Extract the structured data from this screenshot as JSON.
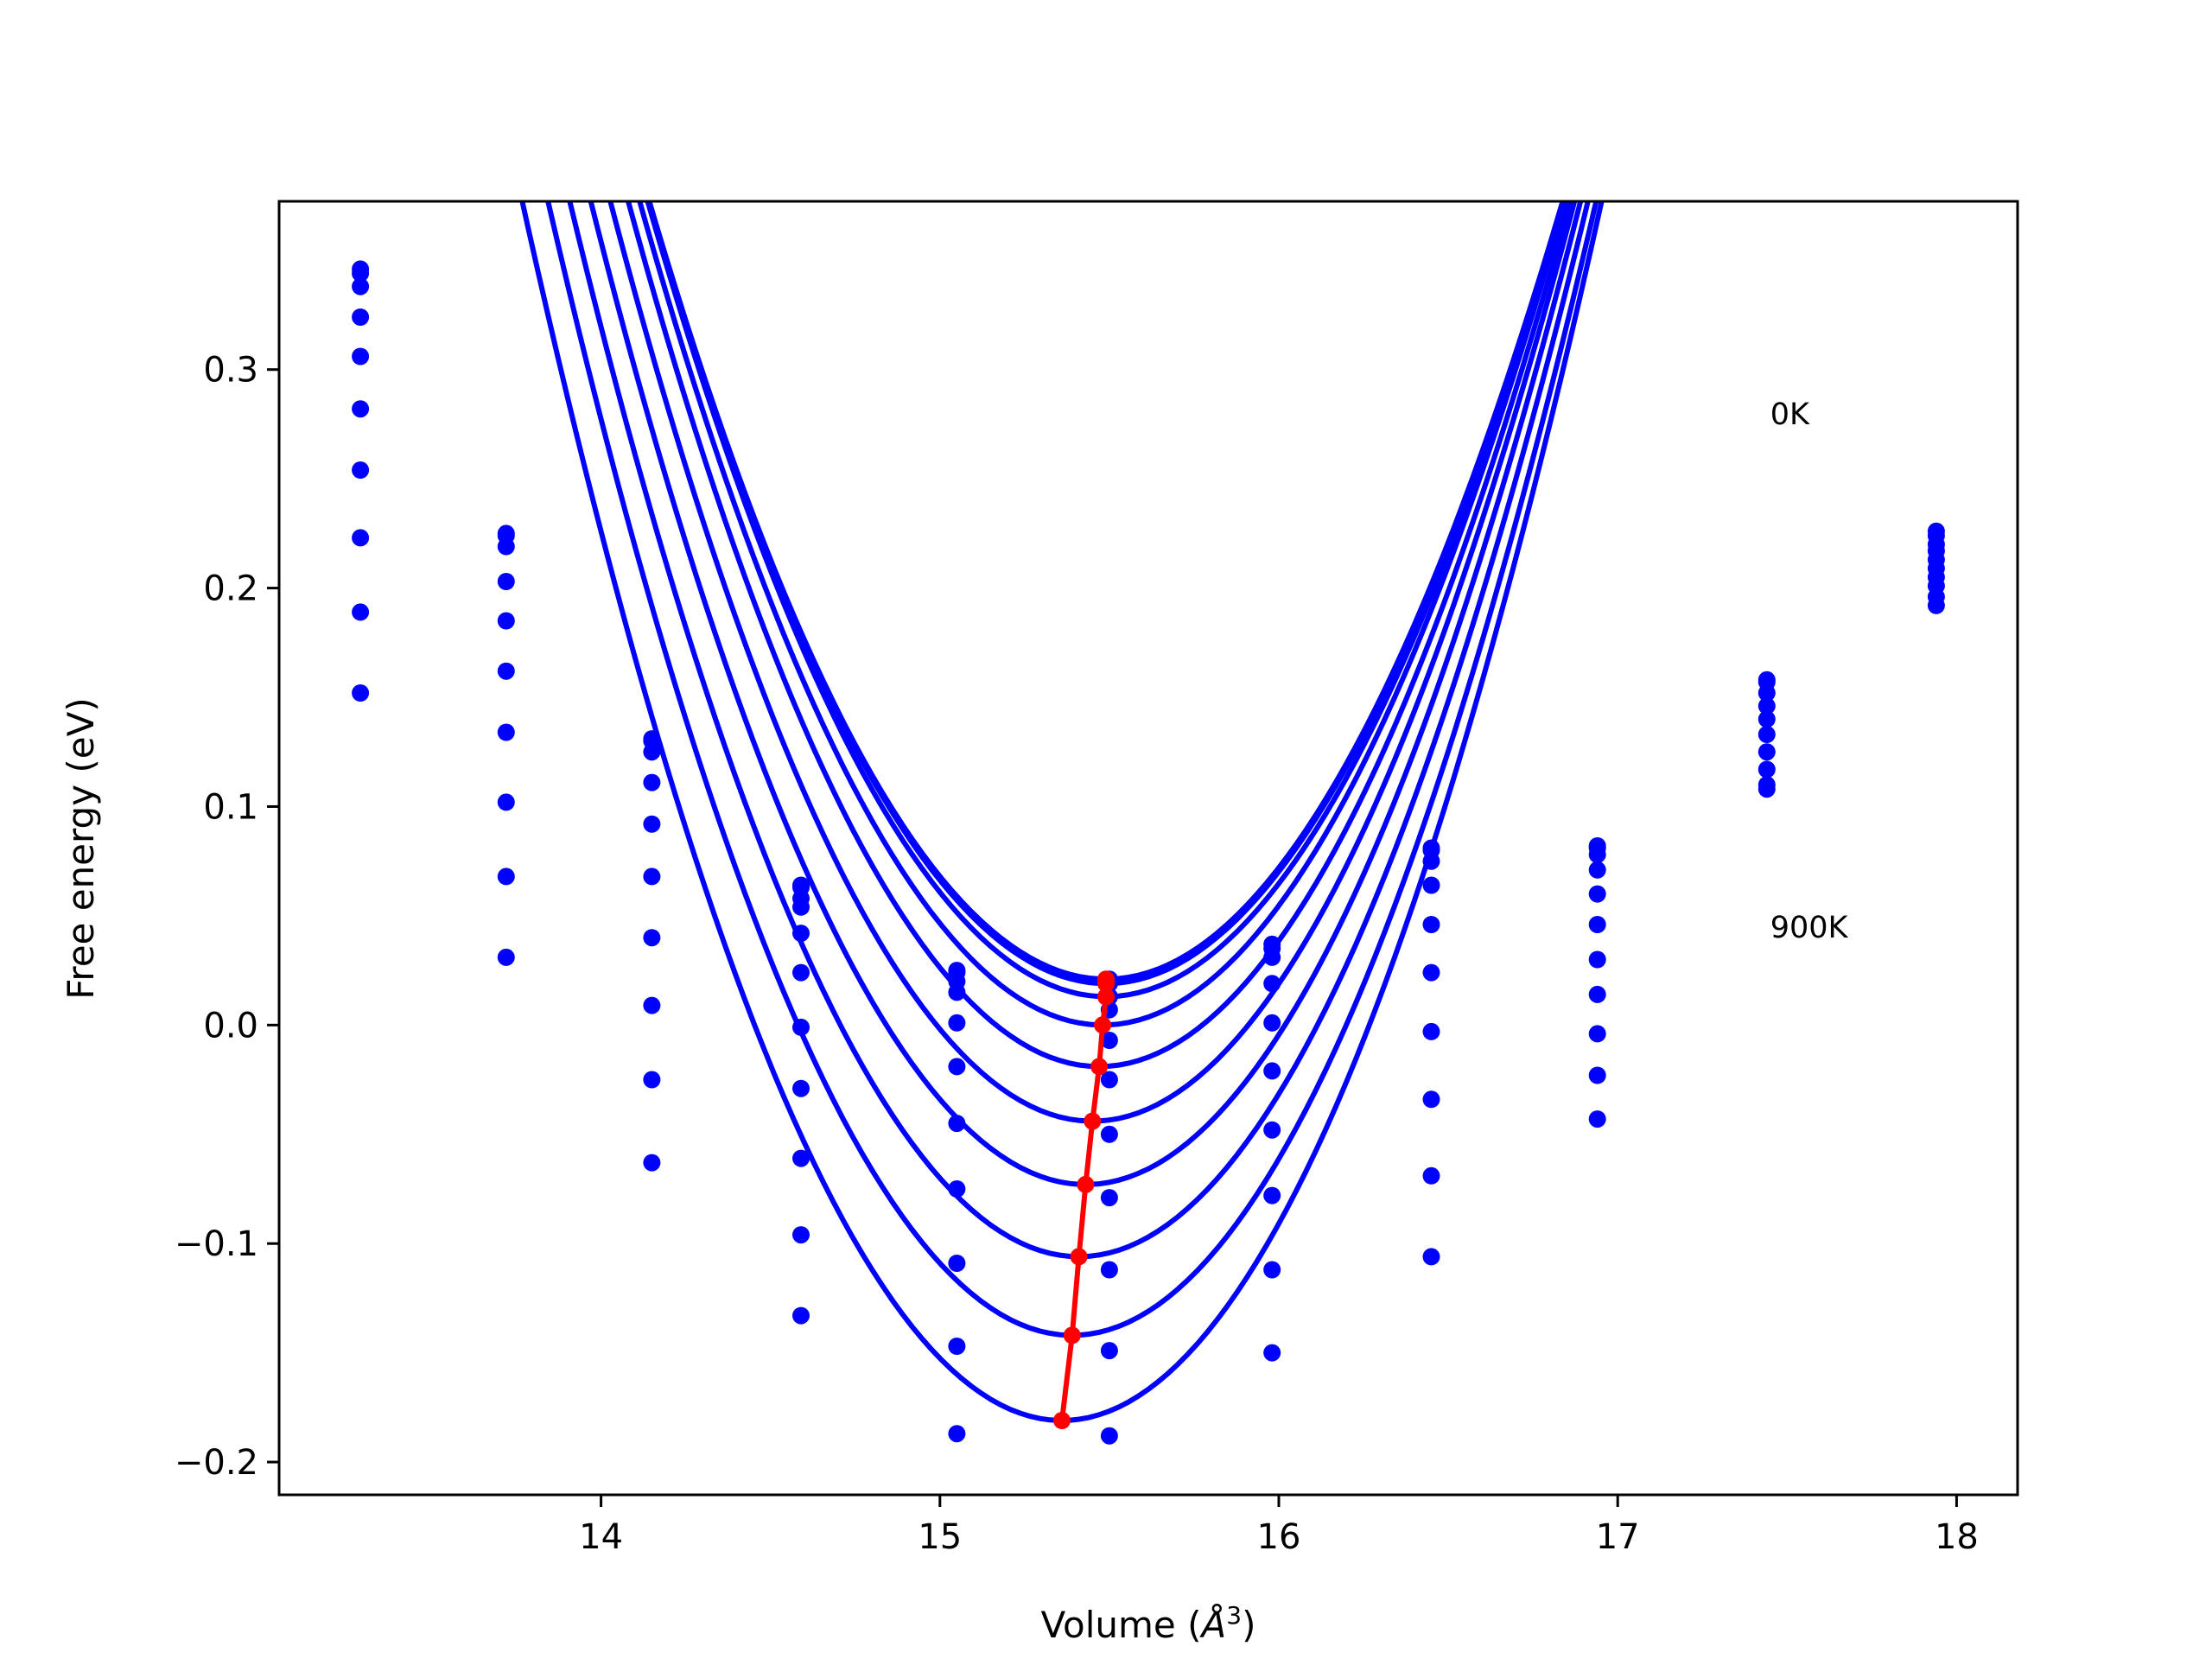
{
  "chart_data": {
    "type": "line",
    "title": "",
    "xlabel": "Volume (Å3)",
    "xlabel_parts": {
      "pre": "Volume (",
      "symbol": "Å",
      "sup": "3",
      "post": ")"
    },
    "ylabel": "Free energy (eV)",
    "xlim": [
      13.05,
      18.18
    ],
    "ylim": [
      -0.215,
      0.377
    ],
    "x_ticks": [
      14,
      15,
      16,
      17,
      18
    ],
    "x_tick_labels": [
      "14",
      "15",
      "16",
      "17",
      "18"
    ],
    "y_ticks": [
      -0.2,
      -0.1,
      0.0,
      0.1,
      0.2,
      0.3
    ],
    "y_tick_labels": [
      "−0.2",
      "−0.1",
      "0.0",
      "0.1",
      "0.2",
      "0.3"
    ],
    "grid": false,
    "legend": "none",
    "annotations": [
      {
        "text": "0K",
        "x": 17.45,
        "y": 0.275
      },
      {
        "text": "900K",
        "x": 17.45,
        "y": 0.04
      }
    ],
    "curve_color": "#0000ff",
    "minimum_color": "#ff0000",
    "volumes": [
      13.29,
      13.72,
      14.15,
      14.59,
      15.05,
      15.5,
      15.98,
      16.45,
      16.94,
      17.44,
      17.94
    ],
    "series": [
      {
        "values": [
          0.346,
          0.225,
          0.131,
          0.064,
          0.025,
          0.021,
          0.037,
          0.081,
          0.082,
          0.158,
          0.226
        ]
      },
      {
        "values": [
          0.344,
          0.224,
          0.13,
          0.063,
          0.024,
          0.019,
          0.035,
          0.08,
          0.081,
          0.157,
          0.224
        ]
      },
      {
        "values": [
          0.338,
          0.219,
          0.125,
          0.058,
          0.02,
          0.013,
          0.031,
          0.075,
          0.078,
          0.152,
          0.22
        ]
      },
      {
        "values": [
          0.324,
          0.203,
          0.111,
          0.054,
          0.015,
          0.007,
          0.019,
          0.064,
          0.071,
          0.146,
          0.217
        ]
      },
      {
        "values": [
          0.306,
          0.185,
          0.092,
          0.042,
          0.001,
          -0.007,
          0.001,
          0.046,
          0.06,
          0.14,
          0.213
        ]
      },
      {
        "values": [
          0.282,
          0.162,
          0.068,
          0.024,
          -0.019,
          -0.025,
          -0.021,
          0.024,
          0.046,
          0.133,
          0.209
        ]
      },
      {
        "values": [
          0.254,
          0.134,
          0.04,
          -0.001,
          -0.045,
          -0.05,
          -0.048,
          -0.003,
          0.03,
          0.125,
          0.205
        ]
      },
      {
        "values": [
          0.223,
          0.102,
          0.009,
          -0.029,
          -0.075,
          -0.079,
          -0.078,
          -0.034,
          0.014,
          0.117,
          0.201
        ]
      },
      {
        "values": [
          0.189,
          0.068,
          -0.025,
          -0.061,
          -0.109,
          -0.112,
          -0.112,
          -0.069,
          -0.004,
          0.11,
          0.196
        ]
      },
      {
        "values": [
          0.152,
          0.031,
          -0.063,
          -0.096,
          -0.147,
          -0.149,
          -0.15,
          -0.106,
          -0.023,
          0.108,
          0.192
        ]
      },
      {
        "values": [
          null,
          null,
          null,
          -0.133,
          -0.187,
          -0.188,
          null,
          null,
          -0.043,
          null,
          null
        ]
      }
    ],
    "fitted_curves": [
      {
        "a": 0.196,
        "v0": 15.49,
        "e0": 0.021
      },
      {
        "a": 0.197,
        "v0": 15.49,
        "e0": 0.019
      },
      {
        "a": 0.199,
        "v0": 15.49,
        "e0": 0.013
      },
      {
        "a": 0.202,
        "v0": 15.48,
        "e0": 0.0
      },
      {
        "a": 0.205,
        "v0": 15.47,
        "e0": -0.019
      },
      {
        "a": 0.208,
        "v0": 15.45,
        "e0": -0.044
      },
      {
        "a": 0.211,
        "v0": 15.43,
        "e0": -0.073
      },
      {
        "a": 0.214,
        "v0": 15.41,
        "e0": -0.106
      },
      {
        "a": 0.217,
        "v0": 15.39,
        "e0": -0.142
      },
      {
        "a": 0.22,
        "v0": 15.36,
        "e0": -0.181
      }
    ],
    "minima": {
      "x": [
        15.49,
        15.49,
        15.49,
        15.48,
        15.47,
        15.45,
        15.43,
        15.41,
        15.39,
        15.36
      ],
      "y": [
        0.021,
        0.019,
        0.013,
        0.0,
        -0.019,
        -0.044,
        -0.073,
        -0.106,
        -0.142,
        -0.181
      ]
    }
  }
}
